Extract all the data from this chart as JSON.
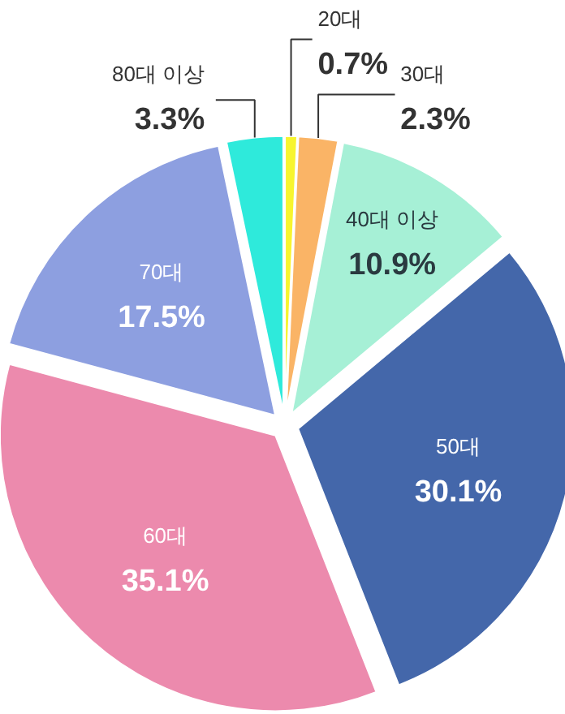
{
  "chart_data": {
    "type": "pie",
    "categories": [
      "20대",
      "30대",
      "40대 이상",
      "50대",
      "60대",
      "70대",
      "80대 이상"
    ],
    "values": [
      0.7,
      2.3,
      10.9,
      30.1,
      35.1,
      17.5,
      3.3
    ],
    "value_labels": [
      "0.7%",
      "2.3%",
      "10.9%",
      "30.1%",
      "35.1%",
      "17.5%",
      "3.3%"
    ],
    "colors": [
      "#f7f52e",
      "#fab466",
      "#a6f0d6",
      "#4467aa",
      "#ec8aad",
      "#8d9fe0",
      "#2eeadb"
    ]
  }
}
